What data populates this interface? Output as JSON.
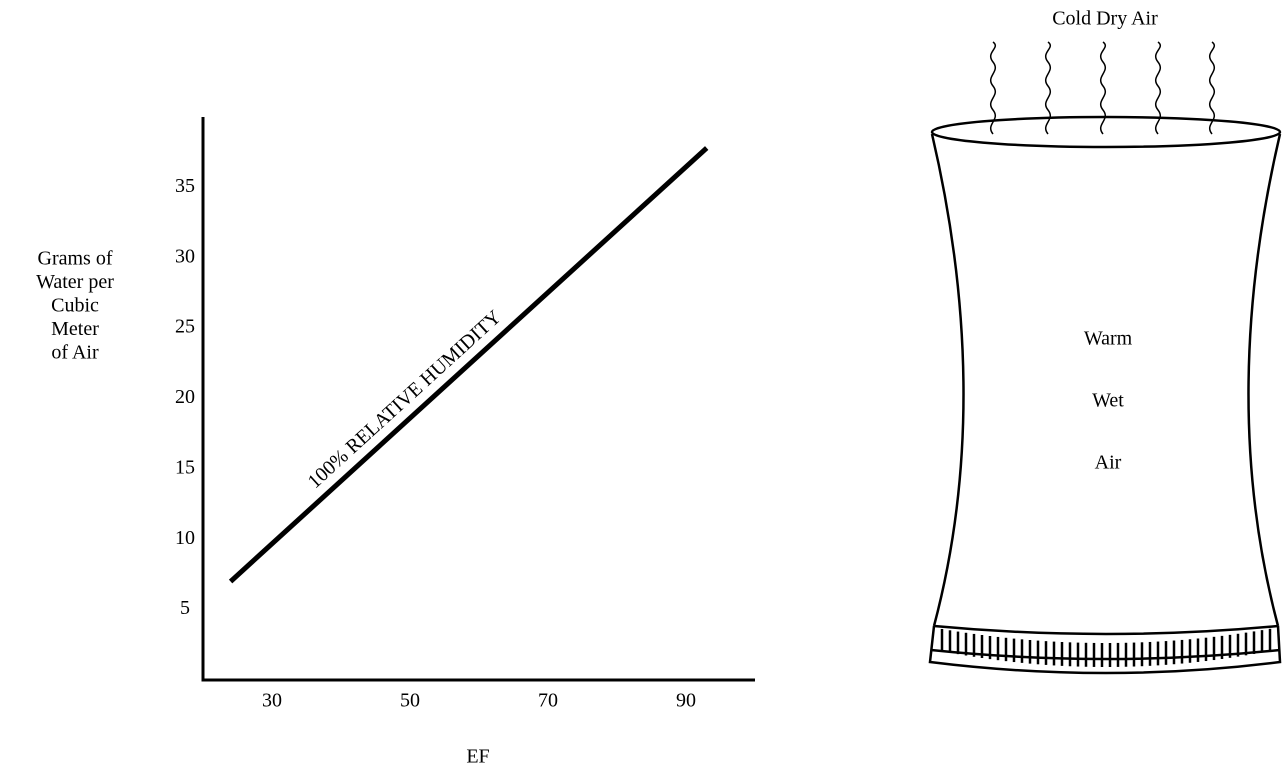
{
  "chart_data": {
    "type": "line",
    "ylabel": [
      "Grams of",
      "Water per",
      "Cubic",
      "Meter",
      "of Air"
    ],
    "xlabel": "EF",
    "annotation": "100% RELATIVE HUMIDITY",
    "x": [
      24,
      93
    ],
    "values": [
      7,
      37.8
    ],
    "color": "#000000",
    "xlim": [
      20,
      100
    ],
    "xticks": [
      30,
      50,
      70,
      90
    ],
    "ylim": [
      0,
      40
    ],
    "yticks": [
      5,
      10,
      15,
      20,
      25,
      30,
      35
    ],
    "grid": false
  },
  "diagram": {
    "title": "Cold Dry Air",
    "labels": [
      "Warm",
      "Wet",
      "Air"
    ]
  }
}
